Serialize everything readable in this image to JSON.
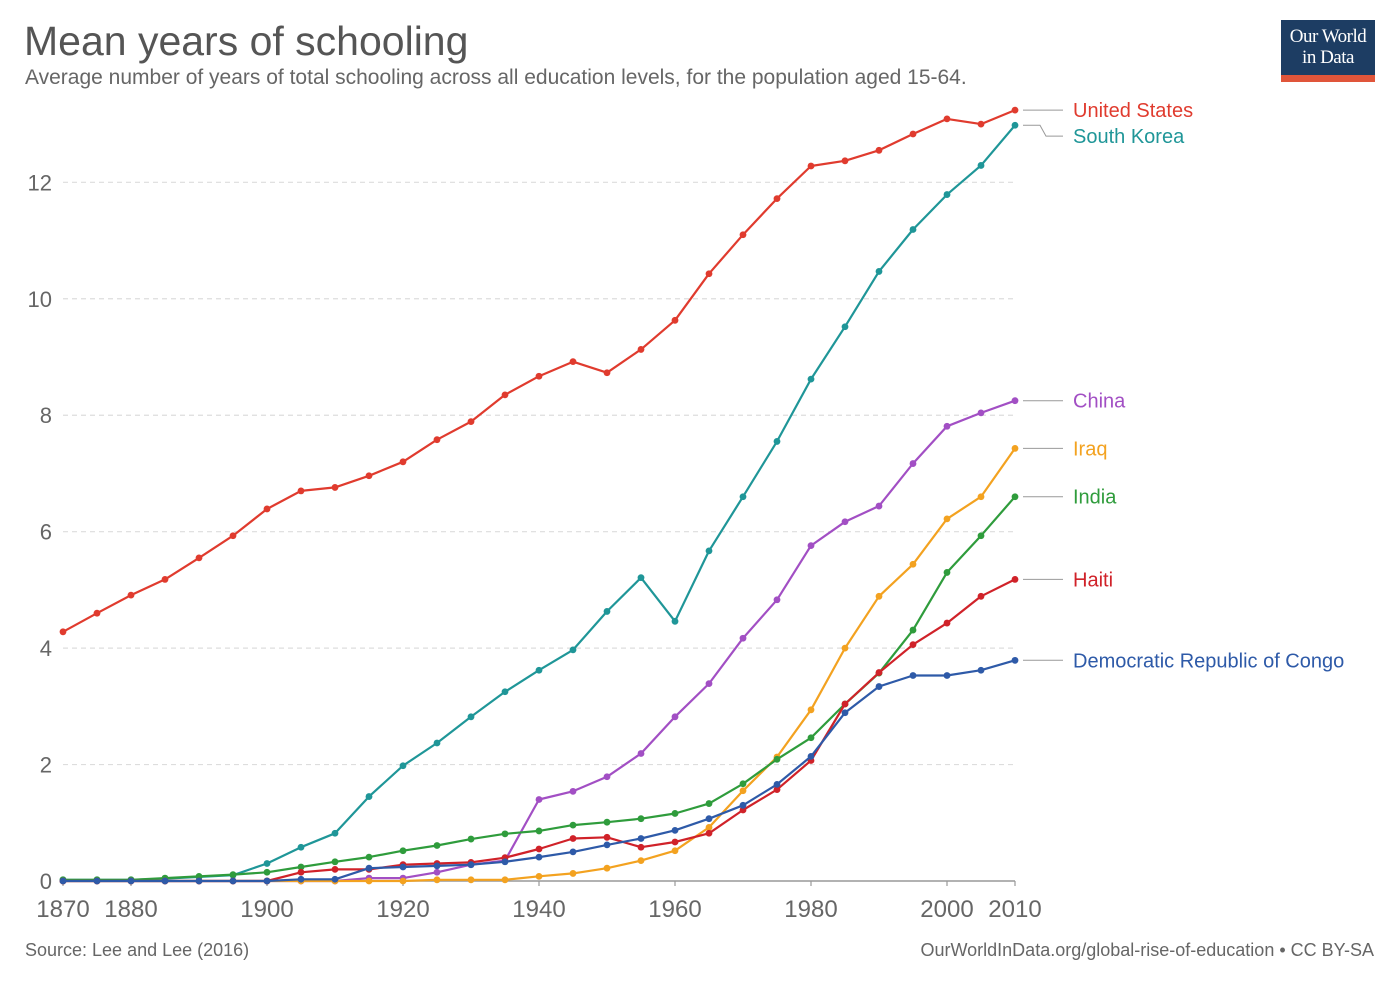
{
  "header": {
    "title": "Mean years of schooling",
    "subtitle": "Average number of years of total schooling across all education levels, for the population aged 15-64."
  },
  "logo": {
    "line1": "Our World",
    "line2": "in Data",
    "bg_color": "#1d3d63",
    "accent_color": "#e0553a"
  },
  "footer": {
    "source": "Source: Lee and Lee (2016)",
    "url": "OurWorldInData.org/global-rise-of-education • CC BY-SA"
  },
  "chart_data": {
    "type": "line",
    "title": "Mean years of schooling",
    "xlabel": "",
    "ylabel": "",
    "xlim": [
      1870,
      2010
    ],
    "ylim": [
      0,
      13.5
    ],
    "grid": true,
    "legend": "right-side labels",
    "x_ticks": [
      1870,
      1880,
      1900,
      1920,
      1940,
      1960,
      1980,
      2000,
      2010
    ],
    "y_ticks": [
      0,
      2,
      4,
      6,
      8,
      10,
      12
    ],
    "x": [
      1870,
      1875,
      1880,
      1885,
      1890,
      1895,
      1900,
      1905,
      1910,
      1915,
      1920,
      1925,
      1930,
      1935,
      1940,
      1945,
      1950,
      1955,
      1960,
      1965,
      1970,
      1975,
      1980,
      1985,
      1990,
      1995,
      2000,
      2005,
      2010
    ],
    "series": [
      {
        "name": "United States",
        "color": "#e03b2e",
        "values": [
          4.28,
          4.6,
          4.91,
          5.18,
          5.55,
          5.93,
          6.39,
          6.7,
          6.76,
          6.96,
          7.2,
          7.58,
          7.89,
          8.35,
          8.67,
          8.92,
          8.73,
          9.13,
          9.63,
          10.43,
          11.1,
          11.72,
          12.28,
          12.37,
          12.55,
          12.83,
          13.09,
          13.0,
          13.24
        ]
      },
      {
        "name": "South Korea",
        "color": "#1f9698",
        "values": [
          0.02,
          0.02,
          0.02,
          0.04,
          0.07,
          0.1,
          0.3,
          0.58,
          0.82,
          1.45,
          1.98,
          2.37,
          2.82,
          3.25,
          3.62,
          3.97,
          4.63,
          5.21,
          4.46,
          5.67,
          6.6,
          7.55,
          8.62,
          9.52,
          10.47,
          11.19,
          11.79,
          12.29,
          12.98
        ]
      },
      {
        "name": "China",
        "color": "#a24fc4",
        "values": [
          0,
          0,
          0,
          0,
          0,
          0,
          0,
          0,
          0,
          0.05,
          0.05,
          0.15,
          0.28,
          0.35,
          1.4,
          1.54,
          1.79,
          2.19,
          2.82,
          3.39,
          4.17,
          4.83,
          5.76,
          6.17,
          6.44,
          7.17,
          7.81,
          8.04,
          8.25
        ]
      },
      {
        "name": "Iraq",
        "color": "#f3a220",
        "values": [
          0,
          0,
          0,
          0,
          0,
          0,
          0,
          0,
          0,
          0,
          0,
          0.02,
          0.02,
          0.02,
          0.08,
          0.13,
          0.22,
          0.35,
          0.52,
          0.92,
          1.55,
          2.13,
          2.94,
          4.0,
          4.89,
          5.44,
          6.22,
          6.6,
          7.43
        ]
      },
      {
        "name": "India",
        "color": "#2f9c3c",
        "values": [
          0.02,
          0.02,
          0.02,
          0.05,
          0.08,
          0.11,
          0.15,
          0.24,
          0.33,
          0.41,
          0.52,
          0.61,
          0.72,
          0.81,
          0.86,
          0.96,
          1.01,
          1.07,
          1.16,
          1.33,
          1.67,
          2.09,
          2.46,
          3.04,
          3.57,
          4.31,
          5.3,
          5.93,
          6.6
        ]
      },
      {
        "name": "Haiti",
        "color": "#d02229",
        "values": [
          0,
          0,
          0,
          0,
          0,
          0,
          0,
          0.15,
          0.2,
          0.2,
          0.28,
          0.3,
          0.32,
          0.4,
          0.55,
          0.73,
          0.75,
          0.58,
          0.67,
          0.82,
          1.22,
          1.57,
          2.07,
          3.04,
          3.58,
          4.06,
          4.43,
          4.89,
          5.18
        ]
      },
      {
        "name": "Democratic Republic of Congo",
        "color": "#2e5aa8",
        "values": [
          0,
          0,
          0,
          0,
          0,
          0,
          0,
          0.03,
          0.03,
          0.22,
          0.24,
          0.26,
          0.28,
          0.33,
          0.41,
          0.5,
          0.62,
          0.73,
          0.87,
          1.07,
          1.3,
          1.66,
          2.14,
          2.89,
          3.34,
          3.53,
          3.53,
          3.62,
          3.79
        ]
      }
    ]
  }
}
